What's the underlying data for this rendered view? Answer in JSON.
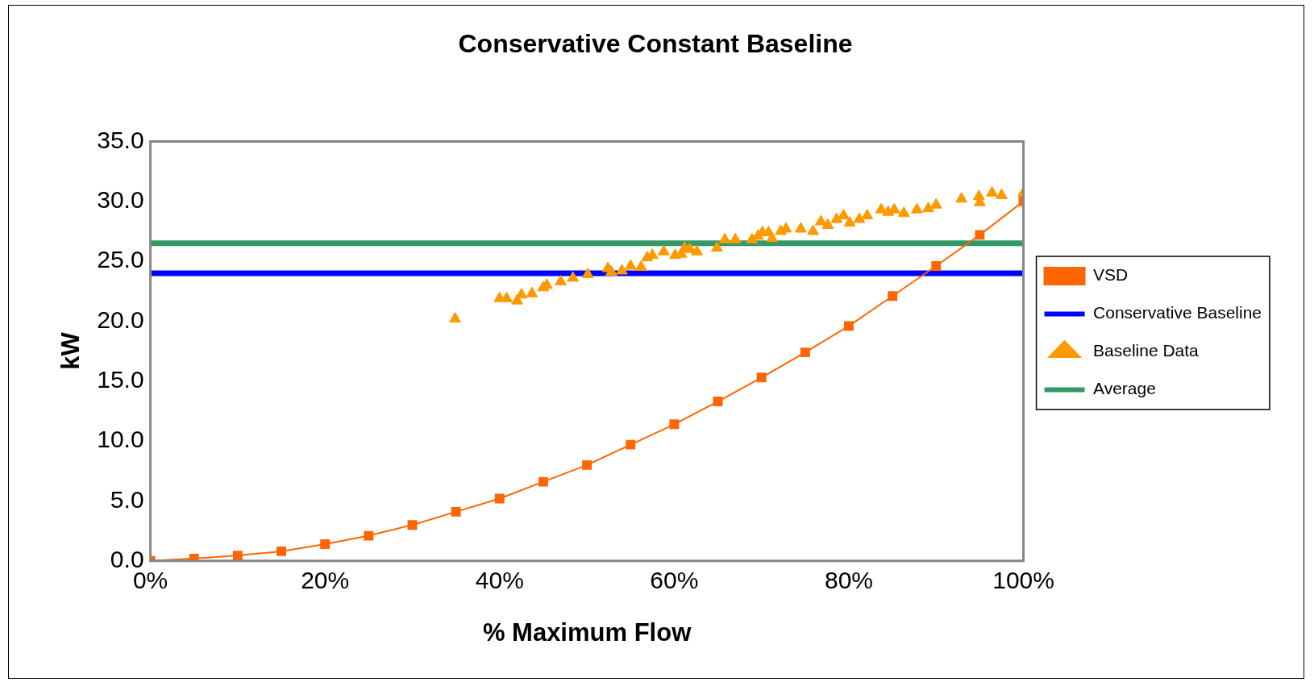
{
  "chart_data": {
    "type": "line",
    "title": "Conservative Constant Baseline",
    "xlabel": "% Maximum Flow",
    "ylabel": "kW",
    "xlim": [
      0,
      100
    ],
    "xticks": [
      {
        "value": 0,
        "label": "0%"
      },
      {
        "value": 20,
        "label": "20%"
      },
      {
        "value": 40,
        "label": "40%"
      },
      {
        "value": 60,
        "label": "60%"
      },
      {
        "value": 80,
        "label": "80%"
      },
      {
        "value": 100,
        "label": "100%"
      }
    ],
    "ylim": [
      0,
      35
    ],
    "yticks": [
      {
        "value": 0,
        "label": "0.0"
      },
      {
        "value": 5,
        "label": "5.0"
      },
      {
        "value": 10,
        "label": "10.0"
      },
      {
        "value": 15,
        "label": "15.0"
      },
      {
        "value": 20,
        "label": "20.0"
      },
      {
        "value": 25,
        "label": "25.0"
      },
      {
        "value": 30,
        "label": "30.0"
      },
      {
        "value": 35,
        "label": "35.0"
      }
    ],
    "grid": false,
    "legend": "right",
    "series": [
      {
        "name": "VSD",
        "type": "line",
        "marker": "square",
        "color": "#ff6600",
        "x": [
          0,
          5,
          10,
          15,
          20,
          25,
          30,
          35,
          40,
          45,
          50,
          55,
          60,
          65,
          70,
          75,
          80,
          85,
          90,
          95,
          100
        ],
        "values": [
          0,
          0.2,
          0.45,
          0.8,
          1.4,
          2.1,
          3.0,
          4.1,
          5.2,
          6.6,
          8.0,
          9.7,
          11.4,
          13.3,
          15.3,
          17.4,
          19.6,
          22.1,
          24.6,
          27.2,
          30.0
        ]
      },
      {
        "name": "Conservative Baseline",
        "type": "line",
        "marker": "none",
        "color": "#0000ff",
        "x": [
          0,
          100
        ],
        "values": [
          24.0,
          24.0
        ]
      },
      {
        "name": "Baseline Data",
        "type": "scatter",
        "marker": "triangle",
        "color": "#ff9900",
        "x": [
          34.9,
          40,
          40.8,
          42,
          42.5,
          43.7,
          45,
          45.4,
          47,
          48.4,
          50.1,
          52.4,
          52.8,
          54,
          55,
          56.2,
          56.9,
          57.5,
          58.8,
          60.1,
          60.8,
          61.2,
          61.8,
          62.6,
          64.9,
          65.8,
          67,
          68.9,
          69.6,
          70.1,
          70.8,
          71.2,
          72.2,
          72.8,
          74.5,
          75.9,
          76.8,
          77.6,
          78.6,
          79.4,
          80.1,
          81.2,
          82.1,
          83.7,
          84.5,
          85.2,
          86.3,
          87.8,
          89.1,
          90,
          92.9,
          94.9,
          95,
          96.4,
          97.5,
          100
        ],
        "values": [
          20.2,
          21.9,
          21.9,
          21.7,
          22.2,
          22.3,
          22.8,
          23.0,
          23.3,
          23.6,
          23.9,
          24.4,
          24.1,
          24.2,
          24.6,
          24.5,
          25.3,
          25.5,
          25.8,
          25.5,
          25.6,
          26.1,
          26.0,
          25.8,
          26.1,
          26.8,
          26.8,
          26.8,
          27.1,
          27.4,
          27.4,
          26.9,
          27.5,
          27.7,
          27.7,
          27.5,
          28.3,
          28.0,
          28.5,
          28.8,
          28.2,
          28.5,
          28.8,
          29.3,
          29.1,
          29.3,
          29.0,
          29.3,
          29.4,
          29.7,
          30.2,
          30.4,
          29.9,
          30.7,
          30.5,
          30.7
        ]
      },
      {
        "name": "Average",
        "type": "line",
        "marker": "none",
        "color": "#339966",
        "x": [
          0,
          100
        ],
        "values": [
          26.5,
          26.5
        ]
      }
    ]
  }
}
